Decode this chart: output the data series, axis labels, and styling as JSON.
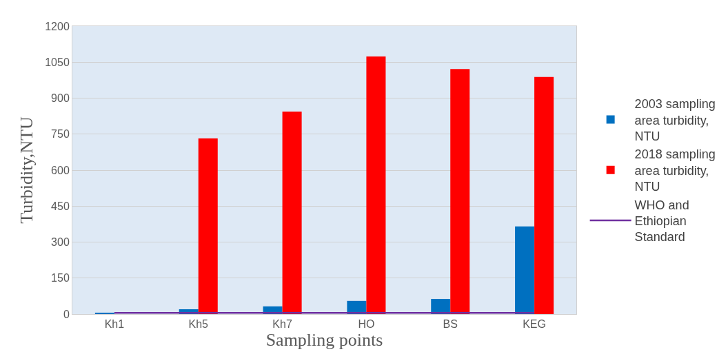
{
  "chart_data": {
    "type": "bar",
    "xlabel": "Sampling points",
    "ylabel": "Turbidity,NTU",
    "categories": [
      "Kh1",
      "Kh5",
      "Kh7",
      "HO",
      "BS",
      "KEG"
    ],
    "series": [
      {
        "name": "2003 sampling area turbidity, NTU",
        "color": "#0070c0",
        "values": [
          4,
          20,
          32,
          55,
          63,
          365
        ]
      },
      {
        "name": "2018 sampling area turbidity, NTU",
        "color": "#ff0000",
        "values": [
          null,
          732,
          844,
          1074,
          1021,
          988
        ]
      },
      {
        "name": "WHO and Ethiopian Standard",
        "type": "line",
        "color": "#7030a0",
        "values": [
          5,
          5,
          5,
          5,
          5,
          5
        ]
      }
    ],
    "ylim": [
      0,
      1200
    ],
    "yticks": [
      0,
      150,
      300,
      450,
      600,
      750,
      900,
      1050,
      1200
    ],
    "grid": "y",
    "legend": "right",
    "marker": "none"
  }
}
